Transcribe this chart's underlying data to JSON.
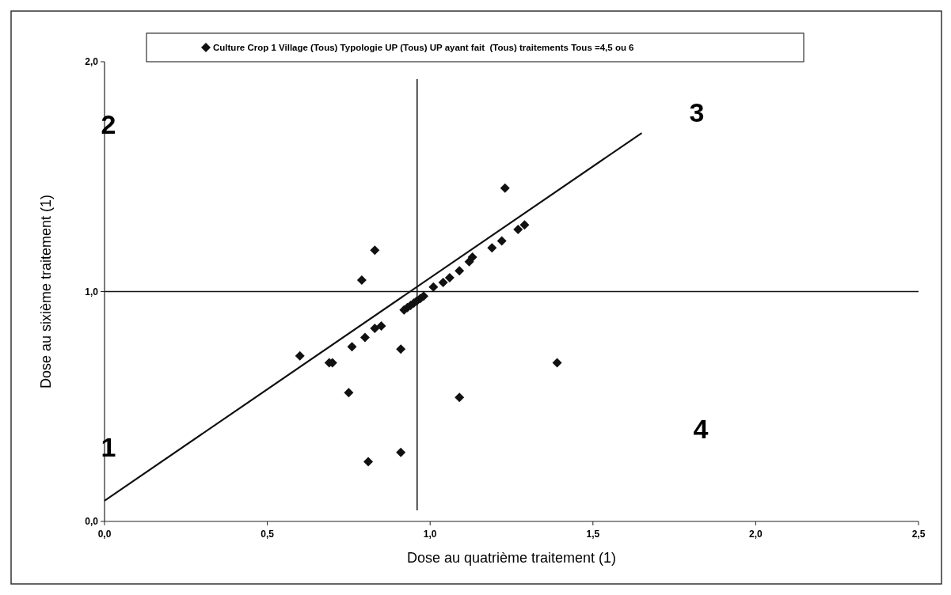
{
  "chart_data": {
    "type": "scatter",
    "xlabel": "Dose au quatrième traitement (1)",
    "ylabel": "Dose au sixième traitement (1)",
    "xlim": [
      0,
      2.5
    ],
    "ylim": [
      0,
      2
    ],
    "xticks": [
      {
        "value": 0,
        "label": "0,0"
      },
      {
        "value": 0.5,
        "label": "0,5"
      },
      {
        "value": 1,
        "label": "1,0"
      },
      {
        "value": 1.5,
        "label": "1,5"
      },
      {
        "value": 2,
        "label": "2,0"
      },
      {
        "value": 2.5,
        "label": "2,5"
      }
    ],
    "yticks": [
      {
        "value": 0,
        "label": "0,0"
      },
      {
        "value": 1,
        "label": "1,0"
      },
      {
        "value": 2,
        "label": "2,0"
      }
    ],
    "grid": false,
    "legend": "top",
    "series": [
      {
        "marker": "diamond",
        "name": "Culture Crop 1 Village (Tous) Typologie UP (Tous) UP ayant fait  (Tous) traitements Tous =4,5 ou 6",
        "color": "#111111",
        "x": [
          0.6,
          0.69,
          0.7,
          0.76,
          0.8,
          0.83,
          0.85,
          0.91,
          0.75,
          0.83,
          0.79,
          0.81,
          0.91,
          0.92,
          0.93,
          0.94,
          0.95,
          0.96,
          0.97,
          0.98,
          1.01,
          1.04,
          1.06,
          1.09,
          1.12,
          1.13,
          1.19,
          1.22,
          1.27,
          1.29,
          1.23,
          1.09,
          1.39
        ],
        "values": [
          0.72,
          0.69,
          0.69,
          0.76,
          0.8,
          0.84,
          0.85,
          0.75,
          0.56,
          1.18,
          1.05,
          0.26,
          0.3,
          0.92,
          0.93,
          0.94,
          0.95,
          0.96,
          0.97,
          0.98,
          1.02,
          1.04,
          1.06,
          1.09,
          1.13,
          1.15,
          1.19,
          1.22,
          1.27,
          1.29,
          1.45,
          0.54,
          0.69
        ]
      },
      {
        "type": "line",
        "color": "#111111",
        "x": [
          0,
          1.65
        ],
        "values": [
          0.09,
          1.69
        ]
      }
    ],
    "ref_lines": [
      {
        "axis": "x",
        "value": 0.96,
        "color": "#111111"
      },
      {
        "axis": "y",
        "value": 1,
        "color": "#111111"
      }
    ],
    "annotations": [
      "1",
      "2",
      "3",
      "4"
    ]
  }
}
